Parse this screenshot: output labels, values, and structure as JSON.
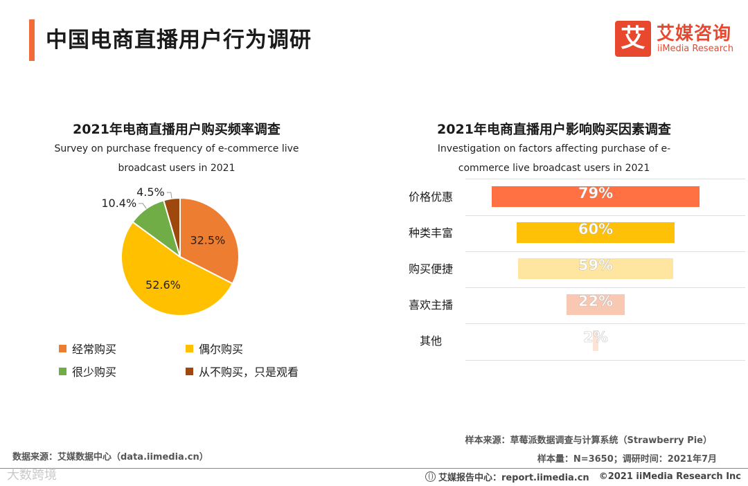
{
  "header": {
    "title": "中国电商直播用户行为调研",
    "logo_char": "艾",
    "logo_cn": "艾媒咨询",
    "logo_en": "iiMedia Research"
  },
  "colors": {
    "accent": "#f26b3a",
    "brand": "#e8492e"
  },
  "chart_data": [
    {
      "type": "pie",
      "title": "2021年电商直播用户购买频率调查",
      "subtitle_line1": "Survey on purchase frequency of e-commerce live",
      "subtitle_line2": "broadcast users in 2021",
      "categories": [
        "经常购买",
        "偶尔购买",
        "很少购买",
        "从不购买，只是观看"
      ],
      "values": [
        32.5,
        52.6,
        10.4,
        4.5
      ],
      "value_labels": [
        "32.5%",
        "52.6%",
        "10.4%",
        "4.5%"
      ],
      "colors": [
        "#ed7d31",
        "#ffc000",
        "#70ad47",
        "#9e480e"
      ],
      "legend_position": "bottom"
    },
    {
      "type": "bar",
      "orientation": "horizontal",
      "title": "2021年电商直播用户影响购买因素调查",
      "subtitle_line1": "Investigation on factors affecting purchase of e-",
      "subtitle_line2": "commerce live broadcast users in 2021",
      "categories": [
        "价格优惠",
        "种类丰富",
        "购买便捷",
        "喜欢主播",
        "其他"
      ],
      "values": [
        79,
        60,
        59,
        22,
        2
      ],
      "value_labels": [
        "79%",
        "60%",
        "59%",
        "22%",
        "2%"
      ],
      "colors": [
        "#ff7043",
        "#ffc107",
        "#ffe6a0",
        "#f8c8b3",
        "#fbe3d6"
      ],
      "xlim": [
        0,
        100
      ]
    }
  ],
  "footer": {
    "source_left": "数据来源：艾媒数据中心（data.iimedia.cn）",
    "source_right": "样本来源：草莓派数据调查与计算系统（Strawberry Pie）",
    "sample_info": "样本量：N=3650；调研时间：2021年7月",
    "watermark": "大数跨境",
    "report_site": "艾媒报告中心：report.iimedia.cn",
    "copyright": "©2021  iiMedia Research  Inc"
  }
}
